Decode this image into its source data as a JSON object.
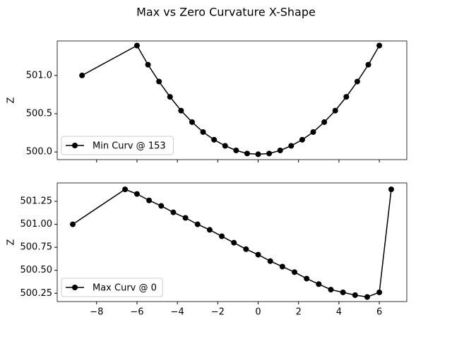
{
  "title": "Max vs Zero Curvature X-Shape",
  "chart_data": [
    {
      "type": "line",
      "ylabel": "Z",
      "legend": "lower left",
      "x": [
        -8.72,
        -6.0,
        -5.455,
        -4.909,
        -4.364,
        -3.818,
        -3.273,
        -2.727,
        -2.182,
        -1.636,
        -1.091,
        -0.545,
        0.0,
        0.545,
        1.091,
        1.636,
        2.182,
        2.727,
        3.273,
        3.818,
        4.364,
        4.909,
        5.455,
        6.0
      ],
      "series": [
        {
          "name": "Min Curv @ 153",
          "color": "#000000",
          "values": [
            501.0,
            501.39,
            501.14,
            500.92,
            500.72,
            500.54,
            500.39,
            500.26,
            500.16,
            500.08,
            500.02,
            499.98,
            499.97,
            499.98,
            500.02,
            500.08,
            500.16,
            500.26,
            500.39,
            500.54,
            500.72,
            500.92,
            501.14,
            501.39
          ]
        }
      ],
      "xlim": [
        -9.95,
        7.36
      ],
      "xticks": [
        {
          "value": -8,
          "label": "−8"
        },
        {
          "value": -6,
          "label": "−6"
        },
        {
          "value": -4,
          "label": "−4"
        },
        {
          "value": -2,
          "label": "−2"
        },
        0,
        2,
        4,
        6
      ],
      "show_xtick_labels": false,
      "ylim": [
        499.9,
        501.45
      ],
      "yticks": [
        {
          "value": 500,
          "label": "500.0"
        },
        500.5,
        {
          "value": 501,
          "label": "501.0"
        }
      ]
    },
    {
      "type": "line",
      "ylabel": "Z",
      "legend": "lower left",
      "x": [
        -9.18,
        -6.59,
        -6.0,
        -5.4,
        -4.8,
        -4.2,
        -3.6,
        -3.0,
        -2.4,
        -1.8,
        -1.2,
        -0.6,
        0.0,
        0.6,
        1.2,
        1.8,
        2.4,
        3.0,
        3.6,
        4.2,
        4.8,
        5.4,
        6.0,
        6.59
      ],
      "series": [
        {
          "name": "Max Curv @ 0",
          "color": "#000000",
          "values": [
            501.0,
            501.38,
            501.33,
            501.26,
            501.2,
            501.13,
            501.07,
            501.0,
            500.94,
            500.87,
            500.8,
            500.73,
            500.67,
            500.6,
            500.54,
            500.48,
            500.41,
            500.35,
            500.29,
            500.26,
            500.23,
            500.21,
            500.26,
            501.38
          ]
        }
      ],
      "xlim": [
        -9.95,
        7.36
      ],
      "xticks": [
        {
          "value": -8,
          "label": "−8"
        },
        {
          "value": -6,
          "label": "−6"
        },
        {
          "value": -4,
          "label": "−4"
        },
        {
          "value": -2,
          "label": "−2"
        },
        0,
        2,
        4,
        6
      ],
      "show_xtick_labels": true,
      "ylim": [
        500.16,
        501.45
      ],
      "yticks": [
        500.25,
        {
          "value": 500.5,
          "label": "500.50"
        },
        500.75,
        {
          "value": 501,
          "label": "501.00"
        },
        501.25
      ]
    }
  ]
}
